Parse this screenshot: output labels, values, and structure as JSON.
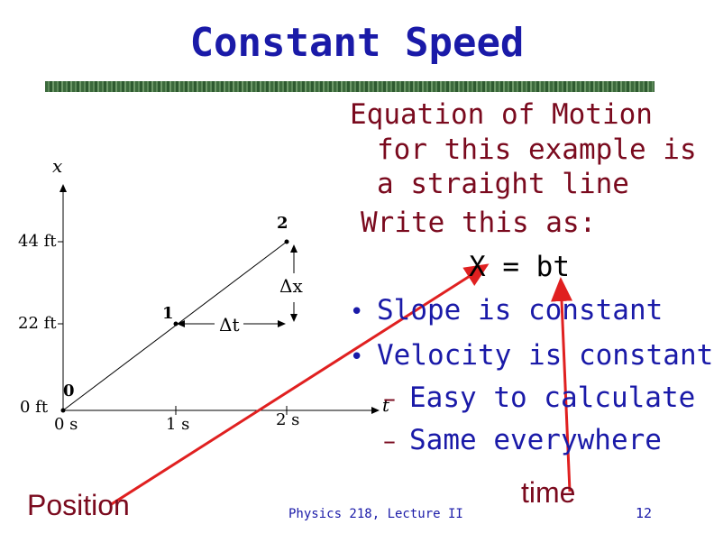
{
  "slide": {
    "title": "Constant Speed",
    "footer": "Physics 218, Lecture II",
    "page_number": "12",
    "title_color": "#1a1aa8",
    "accent_color": "#7a0a1e",
    "arrow_color": "#e02020"
  },
  "graph": {
    "x_axis_symbol": "x",
    "t_axis_symbol": "t",
    "y_ticks": [
      "44 ft",
      "22 ft",
      "0 ft"
    ],
    "t_ticks": [
      "0 s",
      "1 s",
      "2 s"
    ],
    "points": [
      {
        "label": "0",
        "t": 0,
        "x": 0
      },
      {
        "label": "1",
        "t": 1,
        "x": 22
      },
      {
        "label": "2",
        "t": 2,
        "x": 44
      }
    ],
    "delta_t_label": "Δt",
    "delta_x_label": "Δx"
  },
  "text": {
    "eq_line1": "Equation of Motion",
    "eq_line2": "for this example is",
    "eq_line3": "a straight line",
    "eq_line4": "Write this as:",
    "eq_line5": "X = bt",
    "bullets": [
      "Slope is constant",
      "Velocity is constant"
    ],
    "sub_bullets": [
      "Easy to calculate",
      "Same everywhere"
    ],
    "position_label": "Position",
    "time_label": "time"
  }
}
